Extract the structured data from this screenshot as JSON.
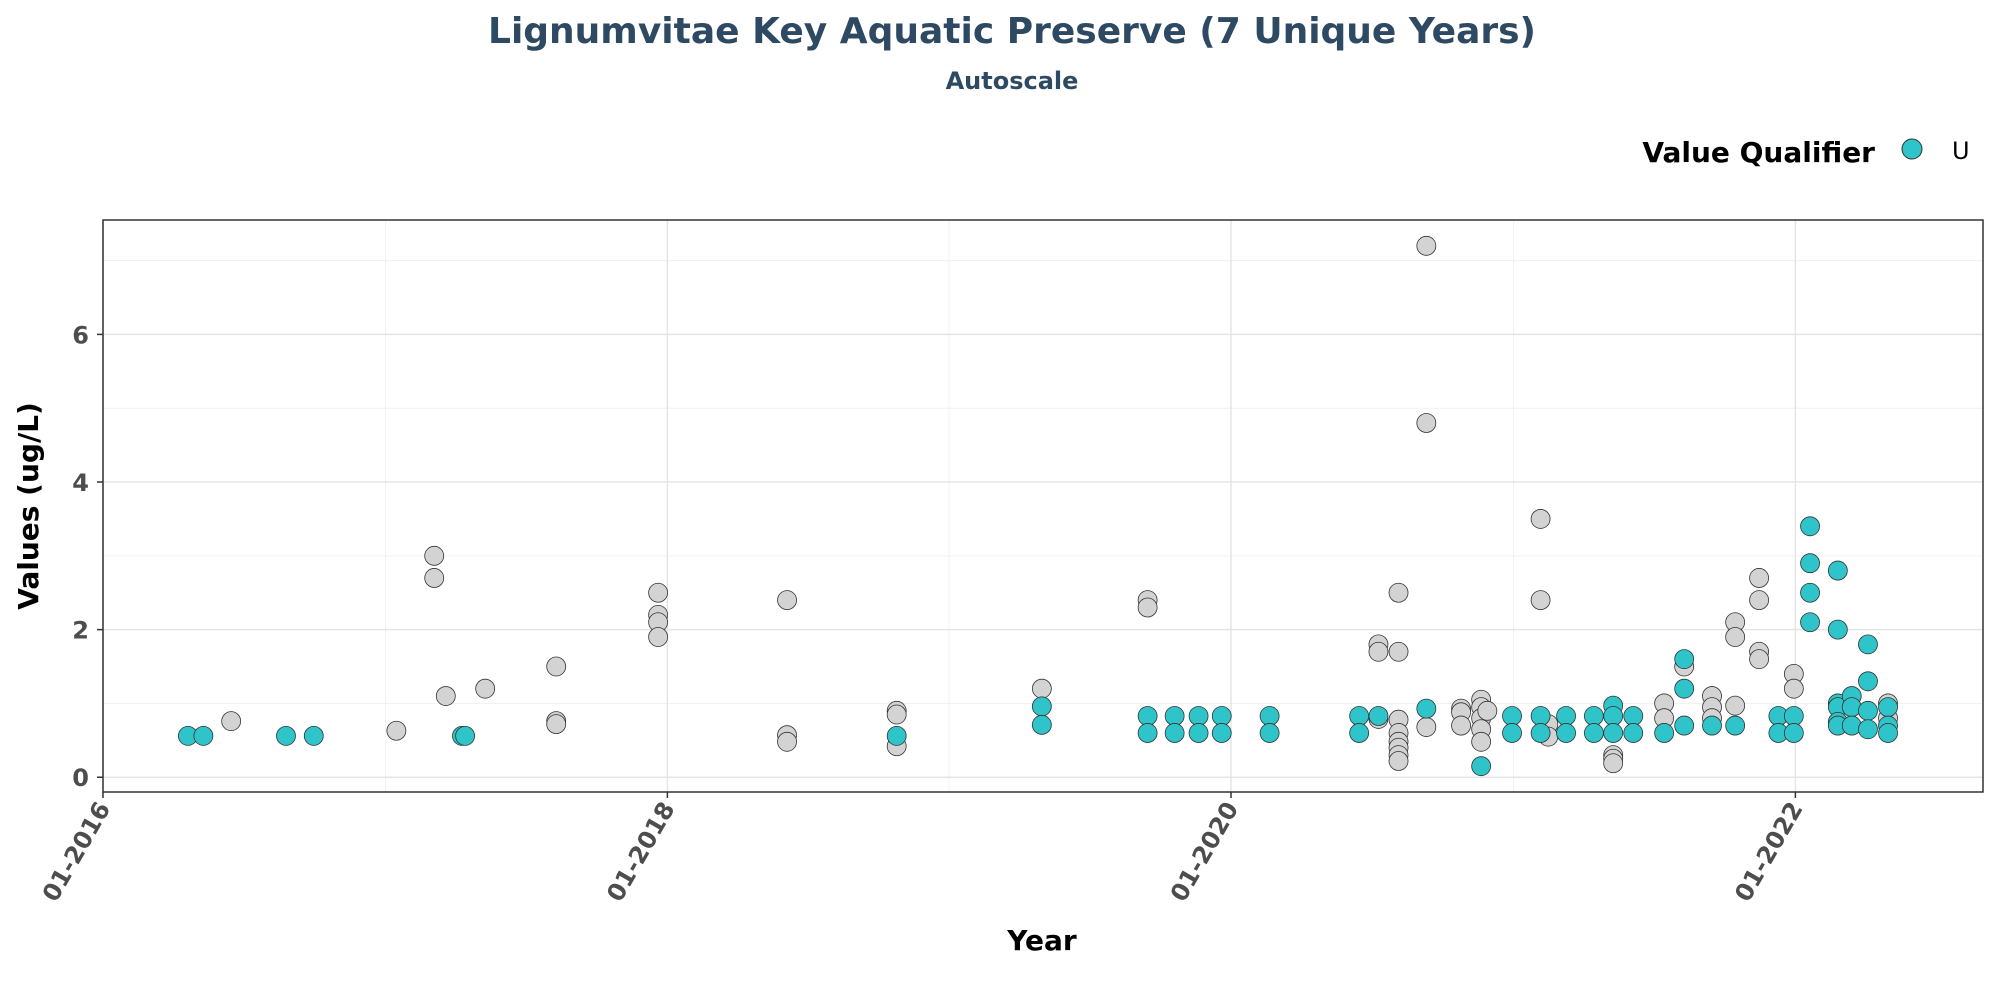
{
  "chart_data": {
    "type": "scatter",
    "title": "Lignumvitae Key Aquatic Preserve (7 Unique Years)",
    "subtitle": "Autoscale",
    "xlabel": "Year",
    "ylabel": "Values (ug/L)",
    "x_axis": {
      "type": "date",
      "range": [
        "2016-01-01",
        "2022-09-01"
      ],
      "ticks": [
        {
          "value": "2016-01-01",
          "label": "01-2016"
        },
        {
          "value": "2018-01-01",
          "label": "01-2018"
        },
        {
          "value": "2020-01-01",
          "label": "01-2020"
        },
        {
          "value": "2022-01-01",
          "label": "01-2022"
        }
      ]
    },
    "y_axis": {
      "range": [
        -0.2,
        7.55
      ],
      "ticks": [
        0,
        2,
        4,
        6
      ]
    },
    "grid": true,
    "legend": {
      "title": "Value Qualifier",
      "position": "top-right",
      "entries": [
        {
          "label": "U",
          "color": "#2ec4c9"
        }
      ]
    },
    "colors": {
      "default": "#d3d3d3",
      "U": "#2ec4c9",
      "title": "#2e4a62"
    },
    "points": [
      {
        "x": "2016-04-20",
        "y": 0.56,
        "q": "U"
      },
      {
        "x": "2016-05-10",
        "y": 0.56,
        "q": "U"
      },
      {
        "x": "2016-06-15",
        "y": 0.76,
        "q": ""
      },
      {
        "x": "2016-08-25",
        "y": 0.56,
        "q": "U"
      },
      {
        "x": "2016-09-30",
        "y": 0.56,
        "q": "U"
      },
      {
        "x": "2017-01-15",
        "y": 0.63,
        "q": ""
      },
      {
        "x": "2017-03-05",
        "y": 3.0,
        "q": ""
      },
      {
        "x": "2017-03-05",
        "y": 2.7,
        "q": ""
      },
      {
        "x": "2017-03-20",
        "y": 1.1,
        "q": ""
      },
      {
        "x": "2017-04-10",
        "y": 0.56,
        "q": "U"
      },
      {
        "x": "2017-04-14",
        "y": 0.56,
        "q": "U"
      },
      {
        "x": "2017-05-10",
        "y": 1.2,
        "q": ""
      },
      {
        "x": "2017-08-10",
        "y": 1.5,
        "q": ""
      },
      {
        "x": "2017-08-10",
        "y": 0.76,
        "q": ""
      },
      {
        "x": "2017-08-10",
        "y": 0.72,
        "q": ""
      },
      {
        "x": "2017-12-20",
        "y": 2.5,
        "q": ""
      },
      {
        "x": "2017-12-20",
        "y": 2.2,
        "q": ""
      },
      {
        "x": "2017-12-20",
        "y": 2.1,
        "q": ""
      },
      {
        "x": "2017-12-20",
        "y": 1.9,
        "q": ""
      },
      {
        "x": "2018-06-05",
        "y": 2.4,
        "q": ""
      },
      {
        "x": "2018-06-05",
        "y": 0.57,
        "q": ""
      },
      {
        "x": "2018-06-05",
        "y": 0.48,
        "q": ""
      },
      {
        "x": "2018-10-25",
        "y": 0.9,
        "q": ""
      },
      {
        "x": "2018-10-25",
        "y": 0.85,
        "q": ""
      },
      {
        "x": "2018-10-25",
        "y": 0.56,
        "q": "U"
      },
      {
        "x": "2018-10-25",
        "y": 0.42,
        "q": ""
      },
      {
        "x": "2019-05-01",
        "y": 1.2,
        "q": ""
      },
      {
        "x": "2019-05-01",
        "y": 0.96,
        "q": "U"
      },
      {
        "x": "2019-05-01",
        "y": 0.71,
        "q": "U"
      },
      {
        "x": "2019-09-15",
        "y": 2.4,
        "q": ""
      },
      {
        "x": "2019-09-15",
        "y": 2.3,
        "q": ""
      },
      {
        "x": "2019-09-15",
        "y": 0.83,
        "q": "U"
      },
      {
        "x": "2019-09-15",
        "y": 0.6,
        "q": "U"
      },
      {
        "x": "2019-10-20",
        "y": 0.83,
        "q": "U"
      },
      {
        "x": "2019-10-20",
        "y": 0.6,
        "q": "U"
      },
      {
        "x": "2019-11-20",
        "y": 0.83,
        "q": "U"
      },
      {
        "x": "2019-11-20",
        "y": 0.6,
        "q": "U"
      },
      {
        "x": "2019-12-20",
        "y": 0.83,
        "q": "U"
      },
      {
        "x": "2019-12-20",
        "y": 0.6,
        "q": "U"
      },
      {
        "x": "2020-02-20",
        "y": 0.83,
        "q": "U"
      },
      {
        "x": "2020-02-20",
        "y": 0.6,
        "q": "U"
      },
      {
        "x": "2020-06-15",
        "y": 0.83,
        "q": "U"
      },
      {
        "x": "2020-06-15",
        "y": 0.6,
        "q": "U"
      },
      {
        "x": "2020-07-10",
        "y": 1.8,
        "q": ""
      },
      {
        "x": "2020-07-10",
        "y": 1.7,
        "q": ""
      },
      {
        "x": "2020-07-10",
        "y": 0.83,
        "q": "U"
      },
      {
        "x": "2020-07-10",
        "y": 0.79,
        "q": ""
      },
      {
        "x": "2020-08-05",
        "y": 2.5,
        "q": ""
      },
      {
        "x": "2020-08-05",
        "y": 1.7,
        "q": ""
      },
      {
        "x": "2020-08-05",
        "y": 0.78,
        "q": ""
      },
      {
        "x": "2020-08-05",
        "y": 0.6,
        "q": ""
      },
      {
        "x": "2020-08-05",
        "y": 0.48,
        "q": ""
      },
      {
        "x": "2020-08-05",
        "y": 0.4,
        "q": ""
      },
      {
        "x": "2020-08-05",
        "y": 0.3,
        "q": ""
      },
      {
        "x": "2020-08-05",
        "y": 0.22,
        "q": ""
      },
      {
        "x": "2020-09-10",
        "y": 7.2,
        "q": ""
      },
      {
        "x": "2020-09-10",
        "y": 4.8,
        "q": ""
      },
      {
        "x": "2020-09-10",
        "y": 0.93,
        "q": "U"
      },
      {
        "x": "2020-09-10",
        "y": 0.68,
        "q": ""
      },
      {
        "x": "2020-10-25",
        "y": 0.93,
        "q": ""
      },
      {
        "x": "2020-10-25",
        "y": 0.88,
        "q": ""
      },
      {
        "x": "2020-10-25",
        "y": 0.7,
        "q": ""
      },
      {
        "x": "2020-11-20",
        "y": 1.05,
        "q": ""
      },
      {
        "x": "2020-11-20",
        "y": 0.95,
        "q": ""
      },
      {
        "x": "2020-11-20",
        "y": 0.8,
        "q": ""
      },
      {
        "x": "2020-11-20",
        "y": 0.65,
        "q": ""
      },
      {
        "x": "2020-11-20",
        "y": 0.48,
        "q": ""
      },
      {
        "x": "2020-11-20",
        "y": 0.15,
        "q": "U"
      },
      {
        "x": "2020-11-28",
        "y": 0.9,
        "q": ""
      },
      {
        "x": "2020-12-30",
        "y": 0.83,
        "q": "U"
      },
      {
        "x": "2020-12-30",
        "y": 0.6,
        "q": "U"
      },
      {
        "x": "2021-02-05",
        "y": 3.5,
        "q": ""
      },
      {
        "x": "2021-02-05",
        "y": 2.4,
        "q": ""
      },
      {
        "x": "2021-02-05",
        "y": 0.83,
        "q": "U"
      },
      {
        "x": "2021-02-05",
        "y": 0.6,
        "q": "U"
      },
      {
        "x": "2021-02-15",
        "y": 0.72,
        "q": ""
      },
      {
        "x": "2021-02-15",
        "y": 0.55,
        "q": ""
      },
      {
        "x": "2021-03-10",
        "y": 0.83,
        "q": "U"
      },
      {
        "x": "2021-03-10",
        "y": 0.6,
        "q": "U"
      },
      {
        "x": "2021-04-15",
        "y": 0.83,
        "q": "U"
      },
      {
        "x": "2021-04-15",
        "y": 0.6,
        "q": "U"
      },
      {
        "x": "2021-05-10",
        "y": 0.97,
        "q": "U"
      },
      {
        "x": "2021-05-10",
        "y": 0.83,
        "q": "U"
      },
      {
        "x": "2021-05-10",
        "y": 0.6,
        "q": "U"
      },
      {
        "x": "2021-05-10",
        "y": 0.3,
        "q": ""
      },
      {
        "x": "2021-05-10",
        "y": 0.25,
        "q": ""
      },
      {
        "x": "2021-05-10",
        "y": 0.19,
        "q": ""
      },
      {
        "x": "2021-06-05",
        "y": 0.83,
        "q": "U"
      },
      {
        "x": "2021-06-05",
        "y": 0.6,
        "q": "U"
      },
      {
        "x": "2021-07-15",
        "y": 1.0,
        "q": ""
      },
      {
        "x": "2021-07-15",
        "y": 0.8,
        "q": ""
      },
      {
        "x": "2021-07-15",
        "y": 0.6,
        "q": "U"
      },
      {
        "x": "2021-08-10",
        "y": 1.6,
        "q": "U"
      },
      {
        "x": "2021-08-10",
        "y": 1.5,
        "q": ""
      },
      {
        "x": "2021-08-10",
        "y": 1.2,
        "q": "U"
      },
      {
        "x": "2021-08-10",
        "y": 0.7,
        "q": "U"
      },
      {
        "x": "2021-09-15",
        "y": 1.1,
        "q": ""
      },
      {
        "x": "2021-09-15",
        "y": 0.95,
        "q": ""
      },
      {
        "x": "2021-09-15",
        "y": 0.8,
        "q": ""
      },
      {
        "x": "2021-09-15",
        "y": 0.7,
        "q": "U"
      },
      {
        "x": "2021-10-15",
        "y": 2.1,
        "q": ""
      },
      {
        "x": "2021-10-15",
        "y": 1.9,
        "q": ""
      },
      {
        "x": "2021-10-15",
        "y": 0.97,
        "q": ""
      },
      {
        "x": "2021-10-15",
        "y": 0.7,
        "q": "U"
      },
      {
        "x": "2021-11-15",
        "y": 2.7,
        "q": ""
      },
      {
        "x": "2021-11-15",
        "y": 2.4,
        "q": ""
      },
      {
        "x": "2021-11-15",
        "y": 1.7,
        "q": ""
      },
      {
        "x": "2021-11-15",
        "y": 1.6,
        "q": ""
      },
      {
        "x": "2021-12-10",
        "y": 0.83,
        "q": "U"
      },
      {
        "x": "2021-12-10",
        "y": 0.6,
        "q": "U"
      },
      {
        "x": "2021-12-30",
        "y": 1.4,
        "q": ""
      },
      {
        "x": "2021-12-30",
        "y": 1.2,
        "q": ""
      },
      {
        "x": "2021-12-30",
        "y": 0.83,
        "q": "U"
      },
      {
        "x": "2021-12-30",
        "y": 0.6,
        "q": "U"
      },
      {
        "x": "2022-01-20",
        "y": 3.4,
        "q": "U"
      },
      {
        "x": "2022-01-20",
        "y": 2.9,
        "q": "U"
      },
      {
        "x": "2022-01-20",
        "y": 2.5,
        "q": "U"
      },
      {
        "x": "2022-01-20",
        "y": 2.1,
        "q": "U"
      },
      {
        "x": "2022-02-25",
        "y": 2.8,
        "q": "U"
      },
      {
        "x": "2022-02-25",
        "y": 2.0,
        "q": "U"
      },
      {
        "x": "2022-02-25",
        "y": 1.0,
        "q": "U"
      },
      {
        "x": "2022-02-25",
        "y": 0.95,
        "q": "U"
      },
      {
        "x": "2022-02-25",
        "y": 0.75,
        "q": "U"
      },
      {
        "x": "2022-02-25",
        "y": 0.7,
        "q": "U"
      },
      {
        "x": "2022-03-15",
        "y": 1.1,
        "q": "U"
      },
      {
        "x": "2022-03-15",
        "y": 0.95,
        "q": "U"
      },
      {
        "x": "2022-03-15",
        "y": 0.7,
        "q": "U"
      },
      {
        "x": "2022-04-05",
        "y": 1.8,
        "q": "U"
      },
      {
        "x": "2022-04-05",
        "y": 1.3,
        "q": "U"
      },
      {
        "x": "2022-04-05",
        "y": 0.9,
        "q": "U"
      },
      {
        "x": "2022-04-05",
        "y": 0.65,
        "q": "U"
      },
      {
        "x": "2022-05-01",
        "y": 1.0,
        "q": ""
      },
      {
        "x": "2022-05-01",
        "y": 0.95,
        "q": "U"
      },
      {
        "x": "2022-05-01",
        "y": 0.8,
        "q": ""
      },
      {
        "x": "2022-05-01",
        "y": 0.7,
        "q": "U"
      },
      {
        "x": "2022-05-01",
        "y": 0.6,
        "q": "U"
      }
    ]
  }
}
